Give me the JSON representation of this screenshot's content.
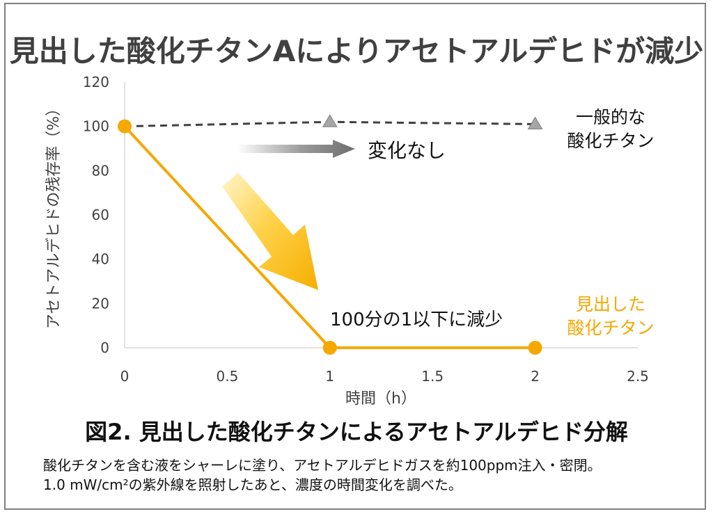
{
  "headline": "見出した酸化チタンAによりアセトアルデヒドが減少",
  "chart_data": {
    "type": "line",
    "xlabel": "時間（h）",
    "ylabel": "アセトアルデヒドの残存率（%）",
    "xlim": [
      0,
      2.5
    ],
    "ylim": [
      0,
      120
    ],
    "xticks": [
      0,
      0.5,
      1,
      1.5,
      2,
      2.5
    ],
    "xtick_labels": [
      "0",
      "0.5",
      "1",
      "1.5",
      "2",
      "2.5"
    ],
    "yticks": [
      0,
      20,
      40,
      60,
      80,
      100,
      120
    ],
    "ytick_labels": [
      "0",
      "20",
      "40",
      "60",
      "80",
      "100",
      "120"
    ],
    "grid": false,
    "series": [
      {
        "name_lines": [
          "一般的な",
          "酸化チタン"
        ],
        "x": [
          0,
          1,
          2
        ],
        "y": [
          100,
          102,
          101
        ],
        "color": "#404040",
        "line_style": "dashed",
        "marker": "triangle",
        "marker_color": "#a6a6a6"
      },
      {
        "name_lines": [
          "見出した",
          "酸化チタン"
        ],
        "x": [
          0,
          1,
          2
        ],
        "y": [
          100,
          0,
          0
        ],
        "color": "#f5a800",
        "line_style": "solid",
        "marker": "circle",
        "marker_color": "#f5a800"
      }
    ],
    "annotations": [
      {
        "text": "変化なし",
        "arrow": "gray-right"
      },
      {
        "text": "100分の1以下に減少",
        "arrow": "yellow-down"
      }
    ]
  },
  "figure_title": "図2. 見出した酸化チタンによるアセトアルデヒド分解",
  "caption": [
    "酸化チタンを含む液をシャーレに塗り、アセトアルデヒドガスを約100ppm注入・密閉。",
    "1.0 mW/cm²の紫外線を照射したあと、濃度の時間変化を調べた。"
  ]
}
